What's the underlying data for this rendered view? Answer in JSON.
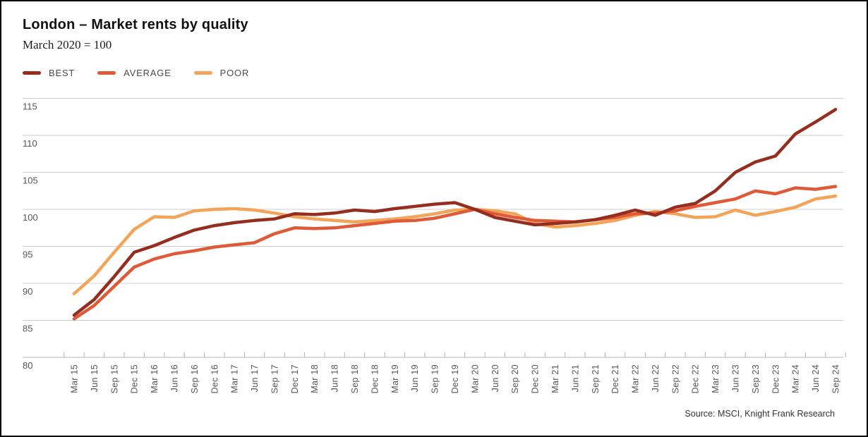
{
  "header": {
    "title": "London – Market rents by quality",
    "subtitle": "March 2020 = 100"
  },
  "legend": [
    {
      "label": "BEST",
      "color": "#962E20"
    },
    {
      "label": "AVERAGE",
      "color": "#DF5A38"
    },
    {
      "label": "POOR",
      "color": "#F2A458"
    }
  ],
  "source": "Source: MSCI, Knight Frank Research",
  "chart_data": {
    "type": "line",
    "title": "London – Market rents by quality",
    "subtitle": "March 2020 = 100",
    "grid": true,
    "legend_position": "top-left",
    "ylim": [
      80,
      115
    ],
    "yticks": [
      80,
      85,
      90,
      95,
      100,
      105,
      110,
      115
    ],
    "categories": [
      "Mar 15",
      "Jun 15",
      "Sep 15",
      "Dec 15",
      "Mar 16",
      "Jun 16",
      "Sep 16",
      "Dec 16",
      "Mar 17",
      "Jun 17",
      "Sep 17",
      "Dec 17",
      "Mar 18",
      "Jun 18",
      "Sep 18",
      "Dec 18",
      "Mar 19",
      "Jun 19",
      "Sep 19",
      "Dec 19",
      "Mar 20",
      "Jun 20",
      "Sep 20",
      "Dec 20",
      "Mar 21",
      "Jun 21",
      "Sep 21",
      "Dec 21",
      "Mar 22",
      "Jun 22",
      "Sep 22",
      "Dec 22",
      "Mar 23",
      "Jun 23",
      "Sep 23",
      "Dec 23",
      "Mar 24",
      "Jun 24",
      "Sep 24"
    ],
    "series": [
      {
        "name": "BEST",
        "color": "#962E20",
        "values": [
          85.7,
          87.8,
          90.9,
          94.2,
          95.1,
          96.2,
          97.2,
          97.8,
          98.2,
          98.5,
          98.7,
          99.4,
          99.3,
          99.5,
          99.9,
          99.7,
          100.1,
          100.4,
          100.7,
          100.9,
          100.0,
          98.9,
          98.4,
          97.9,
          98.1,
          98.3,
          98.6,
          99.2,
          99.9,
          99.2,
          100.3,
          100.8,
          102.5,
          105.0,
          106.4,
          107.2,
          110.2,
          111.8,
          113.5
        ]
      },
      {
        "name": "AVERAGE",
        "color": "#DF5A38",
        "values": [
          85.2,
          87.0,
          89.6,
          92.2,
          93.3,
          94.0,
          94.4,
          94.9,
          95.2,
          95.5,
          96.7,
          97.5,
          97.4,
          97.5,
          97.8,
          98.1,
          98.4,
          98.5,
          98.8,
          99.4,
          100.0,
          99.4,
          98.9,
          98.5,
          98.4,
          98.3,
          98.6,
          98.9,
          99.4,
          99.5,
          99.8,
          100.4,
          100.9,
          101.4,
          102.5,
          102.1,
          102.9,
          102.7,
          103.1
        ]
      },
      {
        "name": "POOR",
        "color": "#F2A458",
        "values": [
          88.6,
          91.0,
          94.2,
          97.3,
          99.0,
          98.9,
          99.8,
          100.0,
          100.1,
          99.9,
          99.5,
          99.0,
          98.7,
          98.5,
          98.3,
          98.5,
          98.7,
          99.0,
          99.4,
          99.9,
          100.0,
          99.8,
          99.4,
          98.1,
          97.6,
          97.8,
          98.1,
          98.5,
          99.2,
          99.7,
          99.4,
          98.9,
          99.0,
          99.9,
          99.2,
          99.7,
          100.3,
          101.4,
          101.8
        ]
      }
    ]
  }
}
